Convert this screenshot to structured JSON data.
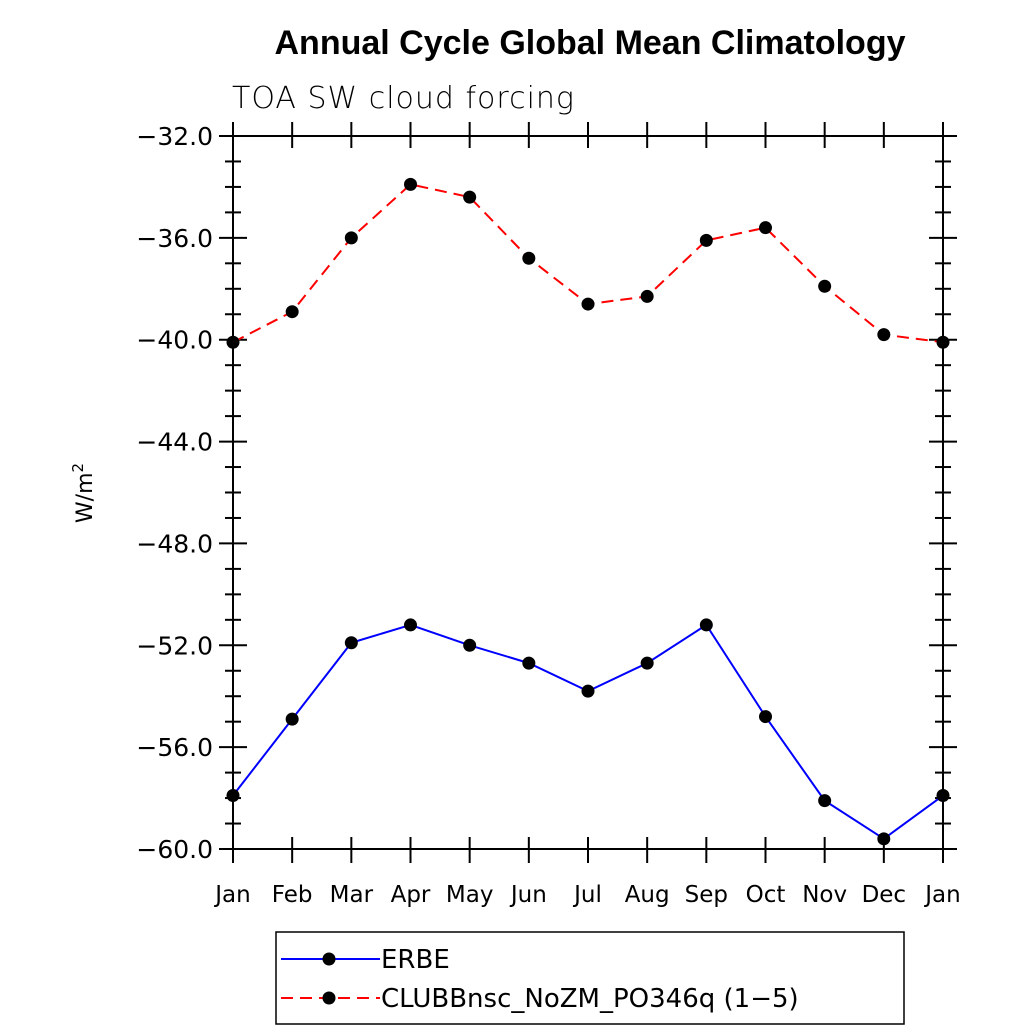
{
  "chart_data": {
    "type": "line",
    "title": "Annual Cycle Global Mean Climatology",
    "subtitle": "TOA SW cloud forcing",
    "ylabel": "W/m",
    "ylabel_superscript": "2",
    "ylim": [
      -60,
      -32
    ],
    "yticks": [
      -32,
      -36,
      -40,
      -44,
      -48,
      -52,
      -56,
      -60
    ],
    "ytick_labels": [
      "−32.0",
      "−36.0",
      "−40.0",
      "−44.0",
      "−48.0",
      "−52.0",
      "−56.0",
      "−60.0"
    ],
    "categories": [
      "Jan",
      "Feb",
      "Mar",
      "Apr",
      "May",
      "Jun",
      "Jul",
      "Aug",
      "Sep",
      "Oct",
      "Nov",
      "Dec",
      "Jan"
    ],
    "series": [
      {
        "name": "ERBE",
        "color": "#0000ff",
        "dash": "solid",
        "values": [
          -57.9,
          -54.9,
          -51.9,
          -51.2,
          -52.0,
          -52.7,
          -53.8,
          -52.7,
          -51.2,
          -54.8,
          -58.1,
          -59.6,
          -57.9
        ]
      },
      {
        "name": "CLUBBnsc_NoZM_PO346q (1−5)",
        "color": "#ff0000",
        "dash": "dashed",
        "values": [
          -40.1,
          -38.9,
          -36.0,
          -33.9,
          -34.4,
          -36.8,
          -38.6,
          -38.3,
          -36.1,
          -35.6,
          -37.9,
          -39.8,
          -40.1
        ]
      }
    ],
    "legend_position": "bottom"
  }
}
